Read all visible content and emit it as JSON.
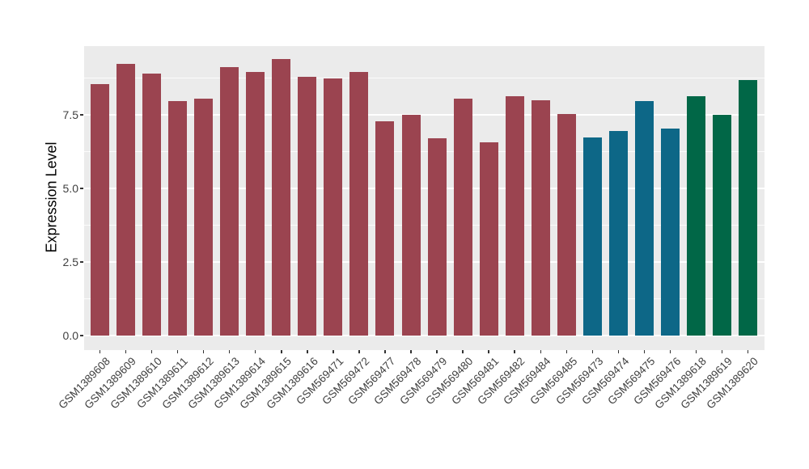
{
  "figure": {
    "background": "#FFFFFF",
    "panel_background": "#EBEBEB",
    "gridline_color": "#FFFFFF",
    "tick_mark_color": "#333333",
    "tick_label_color": "#404040",
    "axis_title_color": "#000000"
  },
  "chart_data": {
    "type": "bar",
    "title": "",
    "xlabel": "",
    "ylabel": "Expression Level",
    "legend_position": "none",
    "grid": true,
    "x_tick_rotation": 45,
    "ylim": [
      0,
      9.9
    ],
    "yticks": {
      "values": [
        0,
        2.5,
        5,
        7.5
      ],
      "labels": [
        "0.0",
        "2.5",
        "5.0",
        "7.5"
      ]
    },
    "major_gridlines": [
      0,
      2.5,
      5,
      7.5
    ],
    "minor_gridlines": [
      1.25,
      3.75,
      6.25,
      8.75
    ],
    "categories": [
      "GSM1389608",
      "GSM1389609",
      "GSM1389610",
      "GSM1389611",
      "GSM1389612",
      "GSM1389613",
      "GSM1389614",
      "GSM1389615",
      "GSM1389616",
      "GSM569471",
      "GSM569472",
      "GSM569477",
      "GSM569478",
      "GSM569479",
      "GSM569480",
      "GSM569481",
      "GSM569482",
      "GSM569484",
      "GSM569485",
      "GSM569473",
      "GSM569474",
      "GSM569475",
      "GSM569476",
      "GSM1389618",
      "GSM1389619",
      "GSM1389620"
    ],
    "values": [
      8.55,
      9.22,
      8.89,
      7.98,
      8.06,
      9.11,
      8.96,
      9.39,
      8.8,
      8.74,
      8.95,
      7.27,
      7.49,
      6.71,
      8.05,
      6.58,
      8.13,
      8.0,
      7.53,
      6.74,
      6.95,
      7.98,
      7.02,
      8.13,
      7.51,
      8.68
    ],
    "group_colors": {
      "maroon": "#9b4450",
      "blue": "#0d6787",
      "green": "#016747"
    },
    "bar_groups": [
      "maroon",
      "maroon",
      "maroon",
      "maroon",
      "maroon",
      "maroon",
      "maroon",
      "maroon",
      "maroon",
      "maroon",
      "maroon",
      "maroon",
      "maroon",
      "maroon",
      "maroon",
      "maroon",
      "maroon",
      "maroon",
      "maroon",
      "blue",
      "blue",
      "blue",
      "blue",
      "green",
      "green",
      "green"
    ]
  }
}
